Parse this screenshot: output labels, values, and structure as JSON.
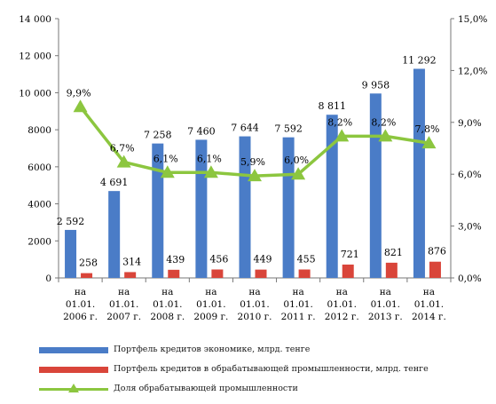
{
  "chart_data": {
    "type": "bar",
    "categories": [
      [
        "на",
        "01.01.",
        "2006 г."
      ],
      [
        "на",
        "01.01.",
        "2007 г."
      ],
      [
        "на",
        "01.01.",
        "2008 г."
      ],
      [
        "на",
        "01.01.",
        "2009 г."
      ],
      [
        "на",
        "01.01.",
        "2010 г."
      ],
      [
        "на",
        "01.01.",
        "2011 г."
      ],
      [
        "на",
        "01.01.",
        "2012 г."
      ],
      [
        "на",
        "01.01.",
        "2013 г."
      ],
      [
        "на",
        "01.01.",
        "2014 г."
      ]
    ],
    "series": [
      {
        "name": "Портфель кредитов экономике, млрд. тенге",
        "type": "bar",
        "axis": "left",
        "color": "#4a7cc7",
        "values": [
          2592,
          4691,
          7258,
          7460,
          7644,
          7592,
          8811,
          9958,
          11292
        ],
        "labels": [
          "2 592",
          "4 691",
          "7 258",
          "7 460",
          "7 644",
          "7 592",
          "8 811",
          "9 958",
          "11 292"
        ]
      },
      {
        "name": "Портфель кредитов в обрабатывающей промышленности, млрд. тенге",
        "type": "bar",
        "axis": "left",
        "color": "#d9453a",
        "values": [
          258,
          314,
          439,
          456,
          449,
          455,
          721,
          821,
          876
        ],
        "labels": [
          "258",
          "314",
          "439",
          "456",
          "449",
          "455",
          "721",
          "821",
          "876"
        ]
      },
      {
        "name": "Доля обрабатывающей промышленности",
        "type": "line",
        "axis": "right",
        "color": "#8cc63f",
        "marker": "triangle",
        "values": [
          9.9,
          6.7,
          6.1,
          6.1,
          5.9,
          6.0,
          8.2,
          8.2,
          7.8
        ],
        "labels": [
          "9,9%",
          "6,7%",
          "6,1%",
          "6,1%",
          "5,9%",
          "6,0%",
          "8,2%",
          "8,2%",
          "7,8%"
        ]
      }
    ],
    "y_left": {
      "range": [
        0,
        14000
      ],
      "ticks": [
        0,
        2000,
        4000,
        6000,
        8000,
        10000,
        12000,
        14000
      ],
      "tick_labels": [
        "0",
        "2000",
        "4000",
        "6000",
        "8000",
        "10 000",
        "12 000",
        "14 000"
      ]
    },
    "y_right": {
      "range": [
        0,
        15
      ],
      "ticks": [
        0,
        3,
        6,
        9,
        12,
        15
      ],
      "tick_labels": [
        "0,0%",
        "3,0%",
        "6,0%",
        "9,0%",
        "12,0%",
        "15,0%"
      ]
    },
    "grid": false,
    "legend_position": "bottom"
  }
}
